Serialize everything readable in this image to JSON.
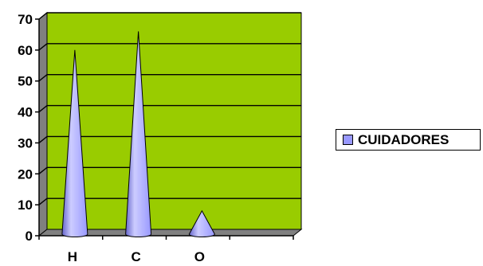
{
  "chart_data": {
    "type": "bar",
    "shape": "cone",
    "categories": [
      "H",
      "C",
      "O",
      ""
    ],
    "series": [
      {
        "name": "CUIDADORES",
        "values": [
          59,
          65,
          7,
          0
        ]
      }
    ],
    "ylim": [
      0,
      70
    ],
    "yticks": [
      0,
      10,
      20,
      30,
      40,
      50,
      60,
      70
    ],
    "grid": true,
    "legend": "right",
    "colors": {
      "plot_background": "#99cc00",
      "wall_side": "#808080",
      "floor": "#808080",
      "series": "#9999ff",
      "series_dark": "#6666cc",
      "series_light": "#ccccff",
      "grid": "#000000"
    }
  }
}
